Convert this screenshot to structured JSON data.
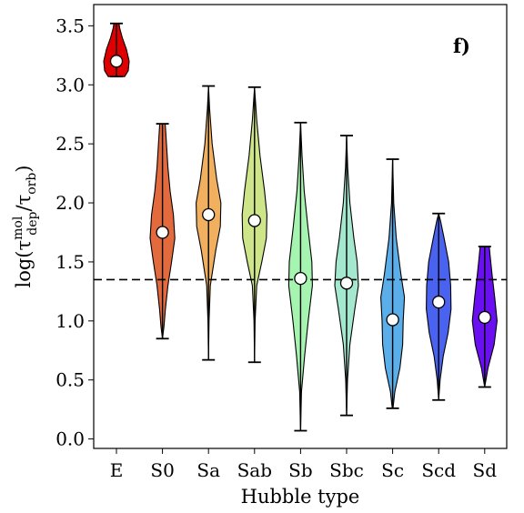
{
  "chart_data": {
    "type": "violin",
    "panel_label": "f)",
    "xlabel": "Hubble type",
    "ylabel_main": "log(τ",
    "ylabel_sup": "mol",
    "ylabel_sub": "dep",
    "ylabel_sep": "/τ",
    "ylabel_sub2": "orb",
    "ylabel_close": ")",
    "ylim": [
      -0.08,
      3.68
    ],
    "yticks": [
      "0.0",
      "0.5",
      "1.0",
      "1.5",
      "2.0",
      "2.5",
      "3.0",
      "3.5"
    ],
    "ytick_values": [
      0.0,
      0.5,
      1.0,
      1.5,
      2.0,
      2.5,
      3.0,
      3.5
    ],
    "reference_line": 1.35,
    "categories": [
      "E",
      "S0",
      "Sa",
      "Sab",
      "Sb",
      "Sbc",
      "Sc",
      "Scd",
      "Sd"
    ],
    "colors": [
      "#e00000",
      "#e26a3d",
      "#f0b060",
      "#cfe58a",
      "#a5f5b0",
      "#a5e8d0",
      "#5aaeea",
      "#4a62f0",
      "#6a10f0"
    ],
    "series": [
      {
        "category": "E",
        "min": 3.07,
        "max": 3.52,
        "median": 3.2,
        "profile": [
          [
            3.07,
            0.45
          ],
          [
            3.12,
            0.65
          ],
          [
            3.2,
            0.7
          ],
          [
            3.3,
            0.55
          ],
          [
            3.4,
            0.32
          ],
          [
            3.48,
            0.18
          ],
          [
            3.52,
            0.14
          ]
        ]
      },
      {
        "category": "S0",
        "min": 0.85,
        "max": 2.67,
        "median": 1.75,
        "profile": [
          [
            0.85,
            0.0
          ],
          [
            0.95,
            0.08
          ],
          [
            1.1,
            0.16
          ],
          [
            1.3,
            0.3
          ],
          [
            1.5,
            0.5
          ],
          [
            1.7,
            0.68
          ],
          [
            1.9,
            0.6
          ],
          [
            2.1,
            0.42
          ],
          [
            2.3,
            0.3
          ],
          [
            2.5,
            0.22
          ],
          [
            2.67,
            0.15
          ]
        ]
      },
      {
        "category": "Sa",
        "min": 0.67,
        "max": 2.99,
        "median": 1.9,
        "profile": [
          [
            0.67,
            0.0
          ],
          [
            1.0,
            0.03
          ],
          [
            1.3,
            0.1
          ],
          [
            1.6,
            0.4
          ],
          [
            1.8,
            0.65
          ],
          [
            2.0,
            0.68
          ],
          [
            2.2,
            0.45
          ],
          [
            2.5,
            0.2
          ],
          [
            2.8,
            0.06
          ],
          [
            2.99,
            0.0
          ]
        ]
      },
      {
        "category": "Sab",
        "min": 0.65,
        "max": 2.98,
        "median": 1.85,
        "profile": [
          [
            0.65,
            0.0
          ],
          [
            1.0,
            0.03
          ],
          [
            1.3,
            0.12
          ],
          [
            1.5,
            0.4
          ],
          [
            1.7,
            0.65
          ],
          [
            1.9,
            0.68
          ],
          [
            2.1,
            0.55
          ],
          [
            2.4,
            0.3
          ],
          [
            2.7,
            0.12
          ],
          [
            2.98,
            0.0
          ]
        ]
      },
      {
        "category": "Sb",
        "min": 0.07,
        "max": 2.68,
        "median": 1.36,
        "profile": [
          [
            0.07,
            0.0
          ],
          [
            0.4,
            0.05
          ],
          [
            0.7,
            0.22
          ],
          [
            1.0,
            0.42
          ],
          [
            1.3,
            0.65
          ],
          [
            1.5,
            0.62
          ],
          [
            1.8,
            0.4
          ],
          [
            2.1,
            0.2
          ],
          [
            2.4,
            0.08
          ],
          [
            2.68,
            0.0
          ]
        ]
      },
      {
        "category": "Sbc",
        "min": 0.2,
        "max": 2.57,
        "median": 1.32,
        "profile": [
          [
            0.2,
            0.0
          ],
          [
            0.5,
            0.05
          ],
          [
            0.8,
            0.18
          ],
          [
            1.1,
            0.45
          ],
          [
            1.3,
            0.65
          ],
          [
            1.5,
            0.58
          ],
          [
            1.7,
            0.4
          ],
          [
            2.0,
            0.18
          ],
          [
            2.3,
            0.06
          ],
          [
            2.57,
            0.0
          ]
        ]
      },
      {
        "category": "Sc",
        "min": 0.26,
        "max": 2.37,
        "median": 1.01,
        "profile": [
          [
            0.26,
            0.02
          ],
          [
            0.4,
            0.12
          ],
          [
            0.6,
            0.4
          ],
          [
            0.8,
            0.55
          ],
          [
            1.0,
            0.58
          ],
          [
            1.2,
            0.65
          ],
          [
            1.4,
            0.45
          ],
          [
            1.7,
            0.2
          ],
          [
            2.0,
            0.06
          ],
          [
            2.37,
            0.0
          ]
        ]
      },
      {
        "category": "Scd",
        "min": 0.33,
        "max": 1.91,
        "median": 1.16,
        "profile": [
          [
            0.33,
            0.0
          ],
          [
            0.5,
            0.08
          ],
          [
            0.7,
            0.25
          ],
          [
            0.9,
            0.52
          ],
          [
            1.1,
            0.68
          ],
          [
            1.3,
            0.66
          ],
          [
            1.5,
            0.55
          ],
          [
            1.7,
            0.3
          ],
          [
            1.85,
            0.1
          ],
          [
            1.91,
            0.0
          ]
        ]
      },
      {
        "category": "Sd",
        "min": 0.44,
        "max": 1.63,
        "median": 1.03,
        "profile": [
          [
            0.44,
            0.0
          ],
          [
            0.6,
            0.18
          ],
          [
            0.8,
            0.52
          ],
          [
            1.0,
            0.68
          ],
          [
            1.2,
            0.55
          ],
          [
            1.4,
            0.4
          ],
          [
            1.55,
            0.3
          ],
          [
            1.63,
            0.25
          ]
        ]
      }
    ]
  }
}
